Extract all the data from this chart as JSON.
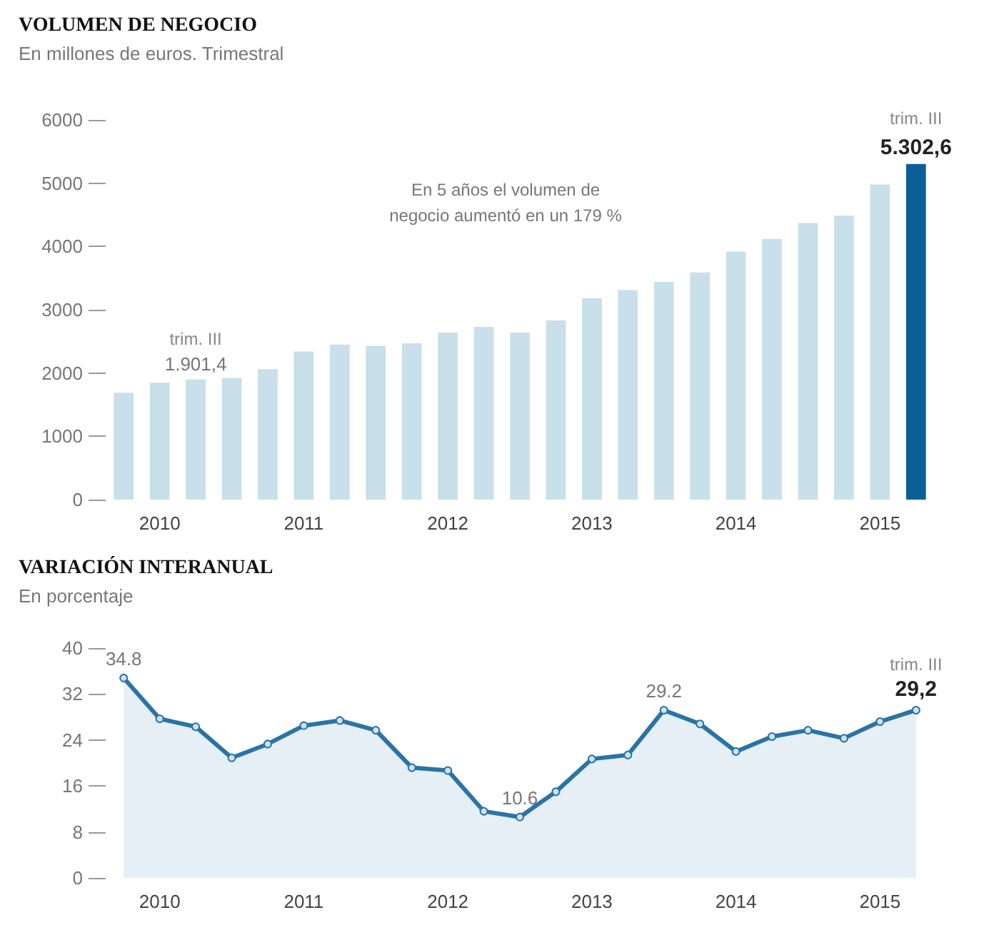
{
  "chart_data": [
    {
      "type": "bar",
      "title": "VOLUMEN DE NEGOCIO",
      "subtitle": "En millones de euros. Trimestral",
      "categories": [
        null,
        "2010",
        null,
        null,
        null,
        "2011",
        null,
        null,
        null,
        "2012",
        null,
        null,
        null,
        "2013",
        null,
        null,
        null,
        "2014",
        null,
        null,
        null,
        "2015",
        null
      ],
      "values": [
        1690,
        1850,
        1901.4,
        1920,
        2060,
        2340,
        2450,
        2430,
        2470,
        2640,
        2730,
        2640,
        2830,
        3180,
        3310,
        3440,
        3590,
        3920,
        4120,
        4370,
        4490,
        4980,
        5302.6
      ],
      "colors": [
        "#c9dfea",
        "#c9dfea",
        "#c9dfea",
        "#c9dfea",
        "#c9dfea",
        "#c9dfea",
        "#c9dfea",
        "#c9dfea",
        "#c9dfea",
        "#c9dfea",
        "#c9dfea",
        "#c9dfea",
        "#c9dfea",
        "#c9dfea",
        "#c9dfea",
        "#c9dfea",
        "#c9dfea",
        "#c9dfea",
        "#c9dfea",
        "#c9dfea",
        "#c9dfea",
        "#c9dfea",
        "#0b5f97"
      ],
      "value_labels": [
        null,
        null,
        "1.901,4",
        null,
        null,
        null,
        null,
        null,
        null,
        null,
        null,
        null,
        null,
        null,
        null,
        null,
        null,
        null,
        null,
        null,
        null,
        null,
        "5.302,6"
      ],
      "annotations": [
        "trim. III",
        "trim. III",
        "En 5 años el volumen de\nnegocio aumentó en un 179 %"
      ],
      "ylim": [
        0,
        6000
      ],
      "yticks": [
        0,
        1000,
        2000,
        3000,
        4000,
        5000,
        6000
      ],
      "grid": false
    },
    {
      "type": "area",
      "title": "VARIACIÓN INTERANUAL",
      "subtitle": "En porcentaje",
      "categories": [
        null,
        "2010",
        null,
        null,
        null,
        "2011",
        null,
        null,
        null,
        "2012",
        null,
        null,
        null,
        "2013",
        null,
        null,
        null,
        "2014",
        null,
        null,
        null,
        "2015",
        null
      ],
      "values": [
        34.8,
        27.7,
        26.3,
        20.9,
        23.3,
        26.5,
        27.4,
        25.7,
        19.2,
        18.7,
        11.6,
        10.6,
        15.0,
        20.7,
        21.4,
        29.2,
        26.8,
        22.0,
        24.6,
        25.7,
        24.3,
        27.2,
        29.2
      ],
      "color": "#2a73a8",
      "value_labels": [
        "34.8",
        null,
        null,
        null,
        null,
        null,
        null,
        null,
        null,
        null,
        null,
        "10.6",
        null,
        null,
        null,
        "29.2",
        null,
        null,
        null,
        null,
        null,
        null,
        "29,2"
      ],
      "annotations": [
        "trim. III"
      ],
      "ylim": [
        0,
        40
      ],
      "yticks": [
        0,
        8,
        16,
        24,
        32,
        40
      ],
      "grid": false,
      "marker": "circle"
    }
  ]
}
